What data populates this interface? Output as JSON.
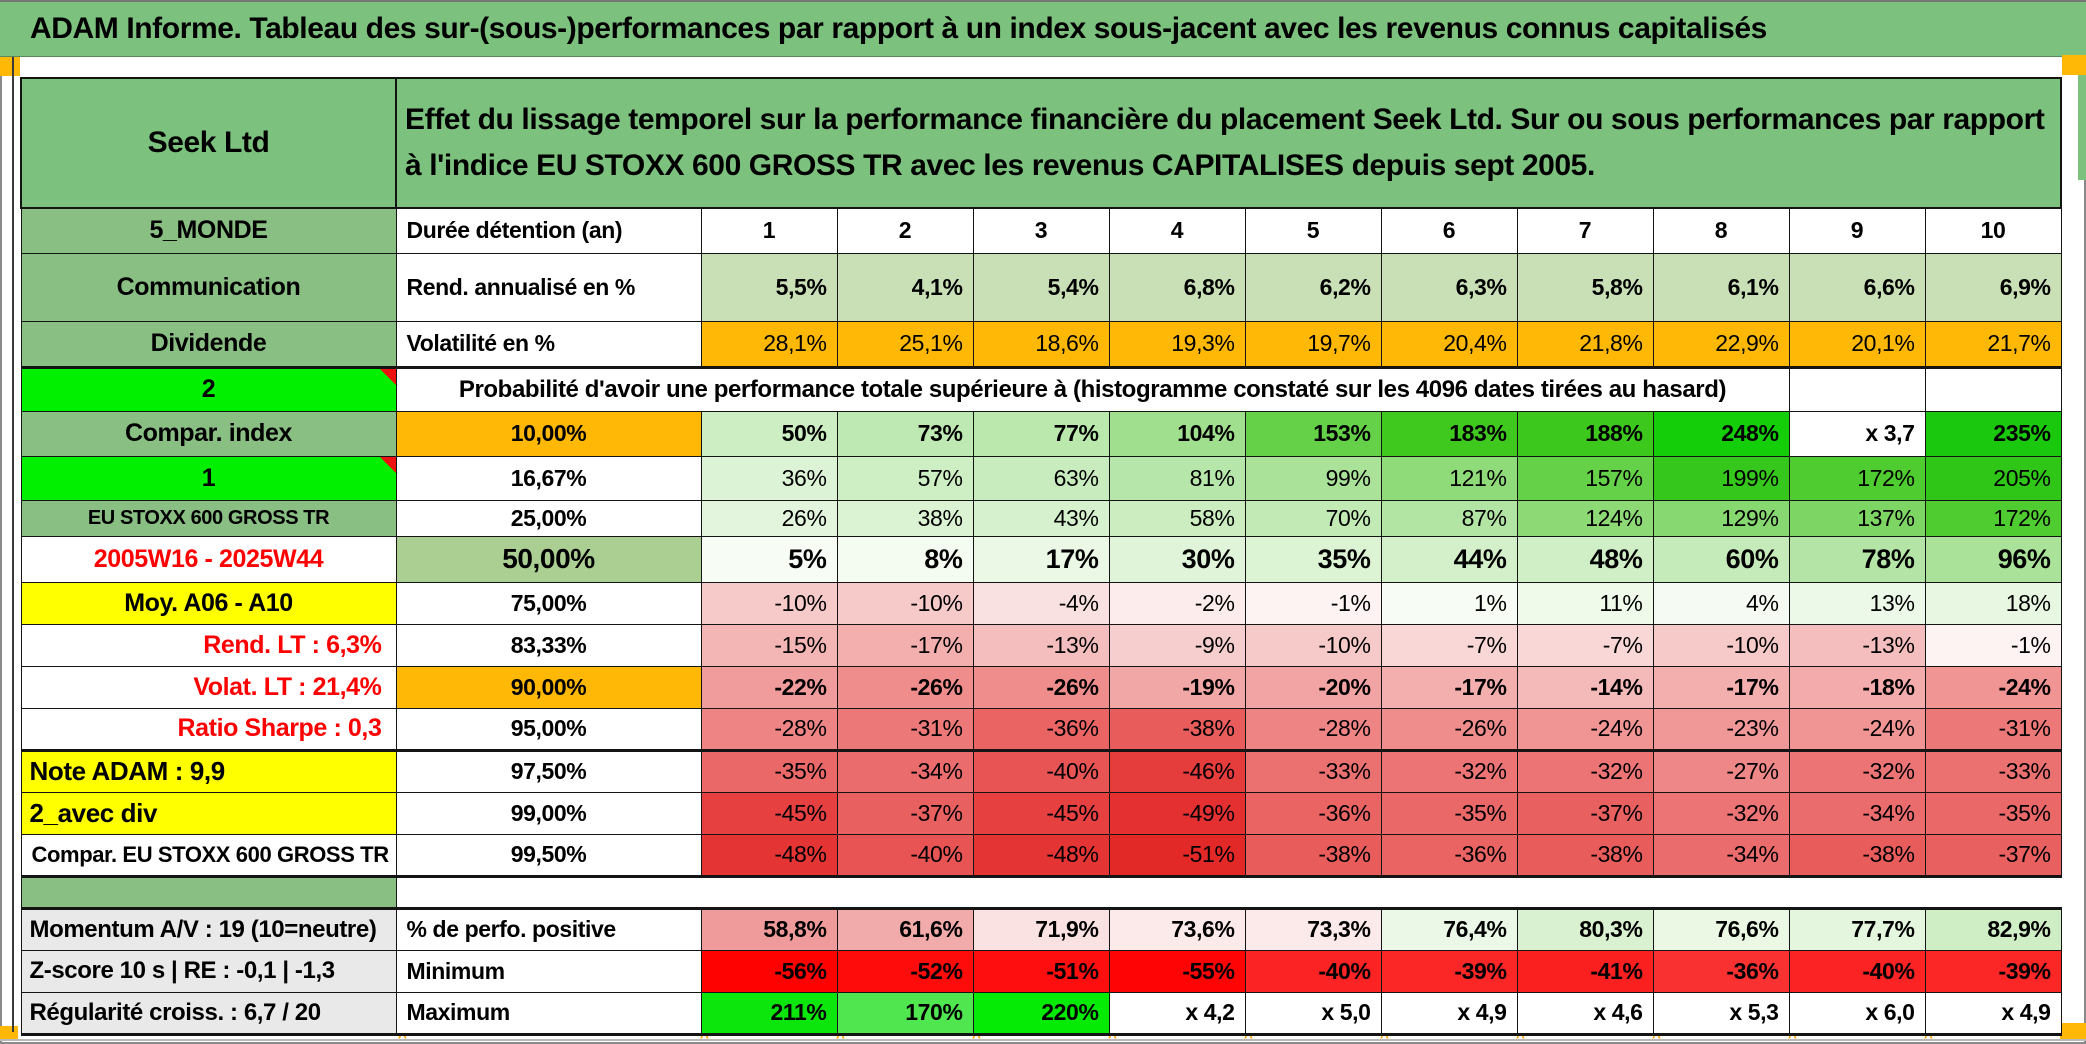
{
  "title": "ADAM Informe. Tableau des sur-(sous-)performances par rapport à un index sous-jacent avec les revenus connus capitalisés",
  "colors": {
    "banner_green": "#7cc17e",
    "label_green": "#8abf84",
    "bright_green": "#00f000",
    "orange": "#ffb805",
    "yellow": "#ffff00",
    "gray_label": "#e9e9e9",
    "sage": "#c9dfb6",
    "mid_green_50": "#abcf92",
    "red_text": "#ff0000",
    "marker_orange": "#ffa600"
  },
  "header": {
    "product": "Seek Ltd",
    "description": "Effet du lissage temporel sur la performance financière du placement Seek Ltd. Sur ou sous performances par rapport à l'indice EU STOXX 600 GROSS TR avec les revenus CAPITALISES depuis sept 2005."
  },
  "columns": [
    "1",
    "2",
    "3",
    "4",
    "5",
    "6",
    "7",
    "8",
    "9",
    "10"
  ],
  "proba_caption": "Probabilité d'avoir une performance totale supérieure à (histogramme constaté sur les 4096 dates tirées au hasard)",
  "rows": [
    {
      "name": "duree",
      "type": "normal",
      "left": {
        "text": "5_MONDE",
        "bg": "#8abf84"
      },
      "mid": {
        "text": "Durée détention (an)",
        "bg": "#ffffff"
      },
      "cells": [
        {
          "t": "1",
          "bg": "#ffffff"
        },
        {
          "t": "2",
          "bg": "#ffffff"
        },
        {
          "t": "3",
          "bg": "#ffffff"
        },
        {
          "t": "4",
          "bg": "#ffffff"
        },
        {
          "t": "5",
          "bg": "#ffffff"
        },
        {
          "t": "6",
          "bg": "#ffffff"
        },
        {
          "t": "7",
          "bg": "#ffffff"
        },
        {
          "t": "8",
          "bg": "#ffffff"
        },
        {
          "t": "9",
          "bg": "#ffffff"
        },
        {
          "t": "10",
          "bg": "#ffffff"
        }
      ]
    },
    {
      "name": "rend",
      "type": "normal",
      "left": {
        "text": "Communication",
        "bg": "#8abf84"
      },
      "mid": {
        "text": "Rend. annualisé en %",
        "bg": "#ffffff"
      },
      "cells": [
        {
          "t": "5,5%",
          "bg": "#c9dfb6"
        },
        {
          "t": "4,1%",
          "bg": "#c9dfb6"
        },
        {
          "t": "5,4%",
          "bg": "#c9dfb6"
        },
        {
          "t": "6,8%",
          "bg": "#c9dfb6"
        },
        {
          "t": "6,2%",
          "bg": "#c9dfb6"
        },
        {
          "t": "6,3%",
          "bg": "#c9dfb6"
        },
        {
          "t": "5,8%",
          "bg": "#c9dfb6"
        },
        {
          "t": "6,1%",
          "bg": "#c9dfb6"
        },
        {
          "t": "6,6%",
          "bg": "#c9dfb6"
        },
        {
          "t": "6,9%",
          "bg": "#c9dfb6"
        }
      ]
    },
    {
      "name": "volatilite",
      "type": "normal",
      "left": {
        "text": "Dividende",
        "bg": "#8abf84"
      },
      "mid": {
        "text": "Volatilité en %",
        "bg": "#ffffff"
      },
      "cells": [
        {
          "t": "28,1%",
          "bg": "#ffb805"
        },
        {
          "t": "25,1%",
          "bg": "#ffb805"
        },
        {
          "t": "18,6%",
          "bg": "#ffb805"
        },
        {
          "t": "19,3%",
          "bg": "#ffb805"
        },
        {
          "t": "19,7%",
          "bg": "#ffb805"
        },
        {
          "t": "20,4%",
          "bg": "#ffb805"
        },
        {
          "t": "21,8%",
          "bg": "#ffb805"
        },
        {
          "t": "22,9%",
          "bg": "#ffb805"
        },
        {
          "t": "20,1%",
          "bg": "#ffb805"
        },
        {
          "t": "21,7%",
          "bg": "#ffb805"
        }
      ]
    },
    {
      "name": "proba",
      "type": "proba",
      "left": {
        "text": "2",
        "bg": "#00f000",
        "note": true
      }
    },
    {
      "name": "p10",
      "type": "normal",
      "left": {
        "text": "Compar. index",
        "bg": "#8abf84"
      },
      "mid": {
        "text": "10,00%",
        "bg": "#ffb805"
      },
      "cells": [
        {
          "t": "50%",
          "bg": "#cceec2"
        },
        {
          "t": "73%",
          "bg": "#bfe9b2"
        },
        {
          "t": "77%",
          "bg": "#bbe8ad"
        },
        {
          "t": "104%",
          "bg": "#a0df8e"
        },
        {
          "t": "153%",
          "bg": "#65d148"
        },
        {
          "t": "183%",
          "bg": "#3fc91f"
        },
        {
          "t": "188%",
          "bg": "#3cc81d"
        },
        {
          "t": "248%",
          "bg": "#14ce0a"
        },
        {
          "t": "x 3,7",
          "bg": "#ffffff"
        },
        {
          "t": "235%",
          "bg": "#1ac90d"
        }
      ]
    },
    {
      "name": "p16",
      "type": "normal",
      "left": {
        "text": "1",
        "bg": "#00f000",
        "note": true
      },
      "mid": {
        "text": "16,67%",
        "bg": "#ffffff"
      },
      "cells": [
        {
          "t": "36%",
          "bg": "#ddf3d6"
        },
        {
          "t": "57%",
          "bg": "#ceeec4"
        },
        {
          "t": "63%",
          "bg": "#c9ecbe"
        },
        {
          "t": "81%",
          "bg": "#b7e6aa"
        },
        {
          "t": "99%",
          "bg": "#a9e298"
        },
        {
          "t": "121%",
          "bg": "#8fda79"
        },
        {
          "t": "157%",
          "bg": "#65d148"
        },
        {
          "t": "199%",
          "bg": "#36c71c"
        },
        {
          "t": "172%",
          "bg": "#4fcc2f"
        },
        {
          "t": "205%",
          "bg": "#2fc618"
        }
      ]
    },
    {
      "name": "p25",
      "type": "normal",
      "left": {
        "text": "EU STOXX 600 GROSS TR",
        "bg": "#8abf84"
      },
      "mid": {
        "text": "25,00%",
        "bg": "#ffffff"
      },
      "cells": [
        {
          "t": "26%",
          "bg": "#e4f5de"
        },
        {
          "t": "38%",
          "bg": "#dbf2d3"
        },
        {
          "t": "43%",
          "bg": "#d6f1cd"
        },
        {
          "t": "58%",
          "bg": "#cbedc0"
        },
        {
          "t": "70%",
          "bg": "#c1eab5"
        },
        {
          "t": "87%",
          "bg": "#b2e5a4"
        },
        {
          "t": "124%",
          "bg": "#8cd975"
        },
        {
          "t": "129%",
          "bg": "#87d870"
        },
        {
          "t": "137%",
          "bg": "#7dd664"
        },
        {
          "t": "172%",
          "bg": "#4fcc2f"
        }
      ]
    },
    {
      "name": "p50",
      "type": "normal",
      "left": {
        "text": "2005W16 - 2025W44",
        "bg": "#ffffff",
        "fg": "#ff0000"
      },
      "mid": {
        "text": "50,00%",
        "bg": "#abcf92"
      },
      "cells": [
        {
          "t": "5%",
          "bg": "#f7fcf5"
        },
        {
          "t": "8%",
          "bg": "#f4fbf1"
        },
        {
          "t": "17%",
          "bg": "#ecf8e6"
        },
        {
          "t": "30%",
          "bg": "#e0f4d9"
        },
        {
          "t": "35%",
          "bg": "#dcf3d4"
        },
        {
          "t": "44%",
          "bg": "#d4f0cb"
        },
        {
          "t": "48%",
          "bg": "#d0efc6"
        },
        {
          "t": "60%",
          "bg": "#c6ebba"
        },
        {
          "t": "78%",
          "bg": "#b4e5a6"
        },
        {
          "t": "96%",
          "bg": "#a9e298"
        }
      ]
    },
    {
      "name": "p75",
      "type": "normal",
      "left": {
        "text": "Moy. A06 - A10",
        "bg": "#ffff00"
      },
      "mid": {
        "text": "75,00%",
        "bg": "#ffffff"
      },
      "cells": [
        {
          "t": "-10%",
          "bg": "#f7caca"
        },
        {
          "t": "-10%",
          "bg": "#f7caca"
        },
        {
          "t": "-4%",
          "bg": "#fae1e1"
        },
        {
          "t": "-2%",
          "bg": "#fcecec"
        },
        {
          "t": "-1%",
          "bg": "#fdf3f3"
        },
        {
          "t": "1%",
          "bg": "#f7fcf5"
        },
        {
          "t": "11%",
          "bg": "#f0faeb"
        },
        {
          "t": "4%",
          "bg": "#f5fbf2"
        },
        {
          "t": "13%",
          "bg": "#edf9e8"
        },
        {
          "t": "18%",
          "bg": "#e8f7e1"
        }
      ]
    },
    {
      "name": "p83",
      "type": "normal",
      "left": {
        "text": "Rend. LT :   6,3%",
        "bg": "#ffffff",
        "fg": "#ff0000"
      },
      "mid": {
        "text": "83,33%",
        "bg": "#ffffff"
      },
      "cells": [
        {
          "t": "-15%",
          "bg": "#f4b5b5"
        },
        {
          "t": "-17%",
          "bg": "#f3aeae"
        },
        {
          "t": "-13%",
          "bg": "#f5bebe"
        },
        {
          "t": "-9%",
          "bg": "#f7cece"
        },
        {
          "t": "-10%",
          "bg": "#f7caca"
        },
        {
          "t": "-7%",
          "bg": "#f9d7d7"
        },
        {
          "t": "-7%",
          "bg": "#f9d7d7"
        },
        {
          "t": "-10%",
          "bg": "#f7caca"
        },
        {
          "t": "-13%",
          "bg": "#f5bebe"
        },
        {
          "t": "-1%",
          "bg": "#fdf3f3"
        }
      ]
    },
    {
      "name": "p90",
      "type": "normal",
      "left": {
        "text": "Volat. LT :   21,4%",
        "bg": "#ffffff",
        "fg": "#ff0000"
      },
      "mid": {
        "text": "90,00%",
        "bg": "#ffb805"
      },
      "cells": [
        {
          "t": "-22%",
          "bg": "#f19c9c"
        },
        {
          "t": "-26%",
          "bg": "#ef8c8c"
        },
        {
          "t": "-26%",
          "bg": "#ef8c8c"
        },
        {
          "t": "-19%",
          "bg": "#f2a7a7"
        },
        {
          "t": "-20%",
          "bg": "#f2a3a3"
        },
        {
          "t": "-17%",
          "bg": "#f3aeae"
        },
        {
          "t": "-14%",
          "bg": "#f4baba"
        },
        {
          "t": "-17%",
          "bg": "#f3aeae"
        },
        {
          "t": "-18%",
          "bg": "#f3abab"
        },
        {
          "t": "-24%",
          "bg": "#f09494"
        }
      ]
    },
    {
      "name": "p95",
      "type": "normal",
      "left": {
        "text": "Ratio Sharpe :   0,3",
        "bg": "#ffffff",
        "fg": "#ff0000"
      },
      "mid": {
        "text": "95,00%",
        "bg": "#ffffff"
      },
      "cells": [
        {
          "t": "-28%",
          "bg": "#ee8484"
        },
        {
          "t": "-31%",
          "bg": "#ec7878"
        },
        {
          "t": "-36%",
          "bg": "#ea6464"
        },
        {
          "t": "-38%",
          "bg": "#e95c5c"
        },
        {
          "t": "-28%",
          "bg": "#ee8484"
        },
        {
          "t": "-26%",
          "bg": "#ef8c8c"
        },
        {
          "t": "-24%",
          "bg": "#f09494"
        },
        {
          "t": "-23%",
          "bg": "#f09898"
        },
        {
          "t": "-24%",
          "bg": "#f09494"
        },
        {
          "t": "-31%",
          "bg": "#ec7878"
        }
      ]
    },
    {
      "name": "p97",
      "type": "normal",
      "left": {
        "text": "Note ADAM : 9,9",
        "bg": "#ffff00"
      },
      "mid": {
        "text": "97,50%",
        "bg": "#ffffff"
      },
      "cells": [
        {
          "t": "-35%",
          "bg": "#ea6868"
        },
        {
          "t": "-34%",
          "bg": "#eb6c6c"
        },
        {
          "t": "-40%",
          "bg": "#e85454"
        },
        {
          "t": "-46%",
          "bg": "#e53c3c"
        },
        {
          "t": "-33%",
          "bg": "#eb7070"
        },
        {
          "t": "-32%",
          "bg": "#ec7474"
        },
        {
          "t": "-32%",
          "bg": "#ec7474"
        },
        {
          "t": "-27%",
          "bg": "#ee8888"
        },
        {
          "t": "-32%",
          "bg": "#ec7474"
        },
        {
          "t": "-33%",
          "bg": "#eb7070"
        }
      ]
    },
    {
      "name": "p99",
      "type": "normal",
      "left": {
        "text": "2_avec div",
        "bg": "#ffff00"
      },
      "mid": {
        "text": "99,00%",
        "bg": "#ffffff"
      },
      "cells": [
        {
          "t": "-45%",
          "bg": "#e64040"
        },
        {
          "t": "-37%",
          "bg": "#e96060"
        },
        {
          "t": "-45%",
          "bg": "#e64040"
        },
        {
          "t": "-49%",
          "bg": "#e43030"
        },
        {
          "t": "-36%",
          "bg": "#ea6464"
        },
        {
          "t": "-35%",
          "bg": "#ea6868"
        },
        {
          "t": "-37%",
          "bg": "#e96060"
        },
        {
          "t": "-32%",
          "bg": "#ec7474"
        },
        {
          "t": "-34%",
          "bg": "#eb6c6c"
        },
        {
          "t": "-35%",
          "bg": "#ea6868"
        }
      ]
    },
    {
      "name": "p995",
      "type": "normal",
      "left": {
        "text": "Compar. EU STOXX 600 GROSS TR",
        "bg": "#ffffff"
      },
      "mid": {
        "text": "99,50%",
        "bg": "#ffffff"
      },
      "cells": [
        {
          "t": "-48%",
          "bg": "#e53434"
        },
        {
          "t": "-40%",
          "bg": "#e85454"
        },
        {
          "t": "-48%",
          "bg": "#e53434"
        },
        {
          "t": "-51%",
          "bg": "#e32828"
        },
        {
          "t": "-38%",
          "bg": "#e95c5c"
        },
        {
          "t": "-36%",
          "bg": "#ea6464"
        },
        {
          "t": "-38%",
          "bg": "#e95c5c"
        },
        {
          "t": "-34%",
          "bg": "#eb6c6c"
        },
        {
          "t": "-38%",
          "bg": "#e95c5c"
        },
        {
          "t": "-37%",
          "bg": "#e96060"
        }
      ]
    },
    {
      "name": "separator",
      "type": "separator",
      "left": {
        "text": "",
        "bg": "#8abf84"
      }
    },
    {
      "name": "momentum",
      "type": "normal",
      "left": {
        "text": "Momentum A/V : 19 (10=neutre)",
        "bg": "#e9e9e9"
      },
      "mid": {
        "text": "% de perfo. positive",
        "bg": "#ffffff"
      },
      "cells": [
        {
          "t": "58,8%",
          "bg": "#f09b9b"
        },
        {
          "t": "61,6%",
          "bg": "#f2abab"
        },
        {
          "t": "71,9%",
          "bg": "#fbe2e2"
        },
        {
          "t": "73,6%",
          "bg": "#fceaea"
        },
        {
          "t": "73,3%",
          "bg": "#fce9e9"
        },
        {
          "t": "76,4%",
          "bg": "#ecf8e7"
        },
        {
          "t": "80,3%",
          "bg": "#d9f1d0"
        },
        {
          "t": "76,6%",
          "bg": "#eaf8e4"
        },
        {
          "t": "77,7%",
          "bg": "#e5f6df"
        },
        {
          "t": "82,9%",
          "bg": "#d0eec6"
        }
      ]
    },
    {
      "name": "zscore",
      "type": "normal",
      "left": {
        "text": "Z-score 10 s | RE : -0,1 | -1,3",
        "bg": "#e9e9e9"
      },
      "mid": {
        "text": "Minimum",
        "bg": "#ffffff"
      },
      "cells": [
        {
          "t": "-56%",
          "bg": "#fe0101"
        },
        {
          "t": "-52%",
          "bg": "#fe0b0b"
        },
        {
          "t": "-51%",
          "bg": "#fe0e0e"
        },
        {
          "t": "-55%",
          "bg": "#fe0404"
        },
        {
          "t": "-40%",
          "bg": "#fb2323"
        },
        {
          "t": "-39%",
          "bg": "#fb2727"
        },
        {
          "t": "-41%",
          "bg": "#fb2020"
        },
        {
          "t": "-36%",
          "bg": "#fa3131"
        },
        {
          "t": "-40%",
          "bg": "#fb2323"
        },
        {
          "t": "-39%",
          "bg": "#fb2727"
        }
      ]
    },
    {
      "name": "regularite",
      "type": "normal",
      "left": {
        "text": "Régularité croiss. : 6,7 / 20",
        "bg": "#e9e9e9"
      },
      "mid": {
        "text": "Maximum",
        "bg": "#ffffff"
      },
      "cells": [
        {
          "t": "211%",
          "bg": "#0ce60c"
        },
        {
          "t": "170%",
          "bg": "#50e650"
        },
        {
          "t": "220%",
          "bg": "#06eb06"
        },
        {
          "t": "x 4,2",
          "bg": "#ffffff"
        },
        {
          "t": "x 5,0",
          "bg": "#ffffff"
        },
        {
          "t": "x 4,9",
          "bg": "#ffffff"
        },
        {
          "t": "x 4,6",
          "bg": "#ffffff"
        },
        {
          "t": "x 5,3",
          "bg": "#ffffff"
        },
        {
          "t": "x 6,0",
          "bg": "#ffffff"
        },
        {
          "t": "x 4,9",
          "bg": "#ffffff"
        }
      ]
    }
  ]
}
